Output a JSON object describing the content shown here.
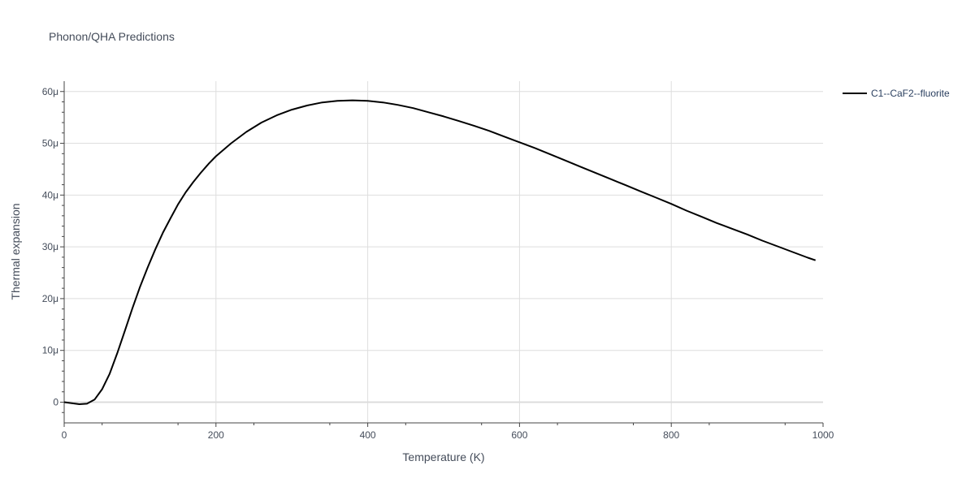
{
  "chart_data": {
    "type": "line",
    "title": "Phonon/QHA Predictions",
    "xlabel": "Temperature (K)",
    "ylabel": "Thermal expansion",
    "xlim": [
      0,
      1000
    ],
    "ylim": [
      -4e-06,
      6.2e-05
    ],
    "x_ticks": [
      0,
      200,
      400,
      600,
      800,
      1000
    ],
    "x_tick_labels": [
      "0",
      "200",
      "400",
      "600",
      "800",
      "1000"
    ],
    "y_ticks": [
      0,
      1e-05,
      2e-05,
      3e-05,
      4e-05,
      5e-05,
      6e-05
    ],
    "y_tick_labels": [
      "0",
      "10μ",
      "20μ",
      "30μ",
      "40μ",
      "50μ",
      "60μ"
    ],
    "grid": true,
    "legend_position": "top-right",
    "series": [
      {
        "name": "C1--CaF2--fluorite",
        "color": "#000000",
        "x": [
          0,
          10,
          20,
          30,
          40,
          50,
          60,
          70,
          80,
          90,
          100,
          110,
          120,
          130,
          140,
          150,
          160,
          170,
          180,
          190,
          200,
          220,
          240,
          260,
          280,
          300,
          320,
          340,
          360,
          380,
          400,
          420,
          440,
          460,
          480,
          500,
          520,
          540,
          560,
          580,
          600,
          620,
          640,
          660,
          680,
          700,
          720,
          740,
          760,
          780,
          800,
          820,
          840,
          860,
          880,
          900,
          920,
          940,
          960,
          980,
          990
        ],
        "y": [
          0,
          -2e-07,
          -4e-07,
          -3e-07,
          5e-07,
          2.5e-06,
          5.5e-06,
          9.5e-06,
          1.38e-05,
          1.82e-05,
          2.23e-05,
          2.6e-05,
          2.95e-05,
          3.27e-05,
          3.55e-05,
          3.82e-05,
          4.05e-05,
          4.25e-05,
          4.43e-05,
          4.6e-05,
          4.75e-05,
          5e-05,
          5.22e-05,
          5.4e-05,
          5.54e-05,
          5.65e-05,
          5.73e-05,
          5.79e-05,
          5.82e-05,
          5.83e-05,
          5.82e-05,
          5.79e-05,
          5.74e-05,
          5.68e-05,
          5.6e-05,
          5.52e-05,
          5.43e-05,
          5.34e-05,
          5.24e-05,
          5.13e-05,
          5.02e-05,
          4.91e-05,
          4.79e-05,
          4.67e-05,
          4.55e-05,
          4.43e-05,
          4.31e-05,
          4.19e-05,
          4.07e-05,
          3.95e-05,
          3.83e-05,
          3.7e-05,
          3.58e-05,
          3.46e-05,
          3.35e-05,
          3.24e-05,
          3.12e-05,
          3.01e-05,
          2.9e-05,
          2.79e-05,
          2.74e-05
        ]
      }
    ]
  }
}
